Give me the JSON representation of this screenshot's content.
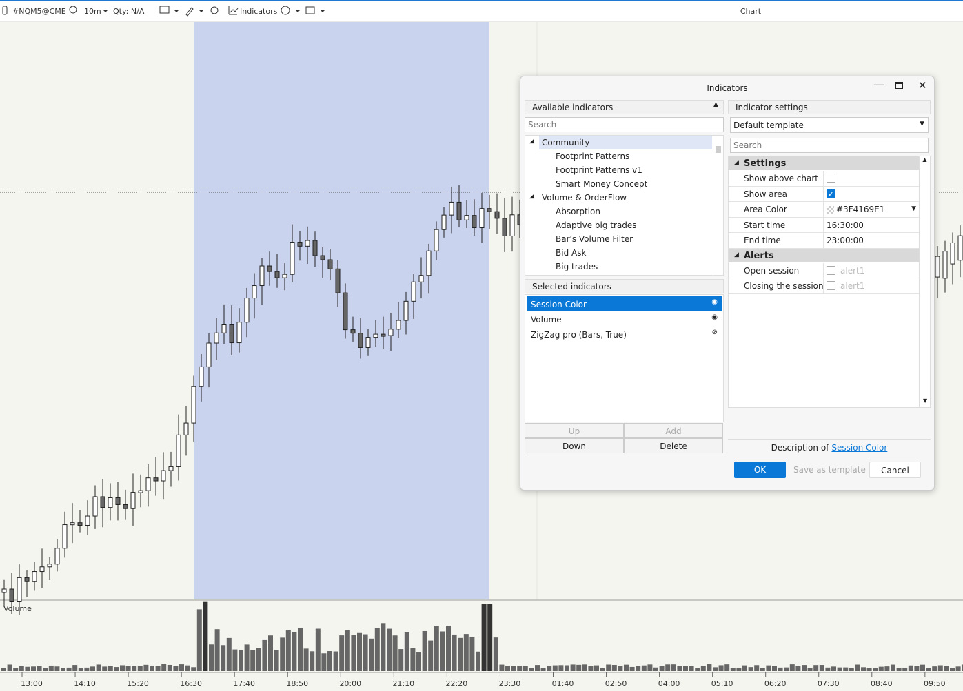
{
  "toolbar": {
    "symbol": "#NQM5@CME",
    "timeframe": "10m",
    "qty": "Qty: N/A",
    "indicators_button": "Indicators",
    "window_title": "Chart"
  },
  "chart": {
    "volume_label": "Volume",
    "time_labels": [
      "13:00",
      "14:10",
      "15:20",
      "16:30",
      "17:40",
      "18:50",
      "20:00",
      "21:10",
      "22:20",
      "23:30",
      "01:40",
      "02:50",
      "04:00",
      "05:10",
      "06:20",
      "07:30",
      "08:40",
      "09:50"
    ]
  },
  "dialog": {
    "title": "Indicators",
    "available": {
      "header": "Available indicators",
      "search_placeholder": "Search",
      "tree": [
        {
          "label": "Community",
          "children": [
            "Footprint Patterns",
            "Footprint Patterns v1",
            "Smart Money Concept"
          ]
        },
        {
          "label": "Volume & OrderFlow",
          "children": [
            "Absorption",
            "Adaptive big trades",
            "Bar's Volume Filter",
            "Bid Ask",
            "Big trades"
          ]
        }
      ]
    },
    "selected": {
      "header": "Selected indicators",
      "items": [
        "Session Color",
        "Volume",
        "ZigZag pro (Bars, True)"
      ],
      "buttons": [
        "Up",
        "Add",
        "Down",
        "Delete"
      ]
    },
    "settings": {
      "header": "Indicator settings",
      "template": "Default template",
      "search_placeholder": "Search",
      "groups": [
        {
          "label": "Settings",
          "rows": [
            {
              "label": "Show above chart",
              "checked": false
            },
            {
              "label": "Show area",
              "checked": true
            },
            {
              "label": "Area Color",
              "value": "#3F4169E1"
            },
            {
              "label": "Start time",
              "value": "16:30:00"
            },
            {
              "label": "End time",
              "value": "23:00:00"
            }
          ]
        },
        {
          "label": "Alerts",
          "rows": [
            {
              "label": "Open session",
              "checked": false,
              "value": "alert1"
            },
            {
              "label": "Closing the session",
              "checked": false,
              "value": "alert1"
            }
          ]
        }
      ],
      "description_prefix": "Description of",
      "description_link": "Session Color"
    },
    "buttons": {
      "ok": "OK",
      "save": "Save as template",
      "cancel": "Cancel"
    }
  }
}
